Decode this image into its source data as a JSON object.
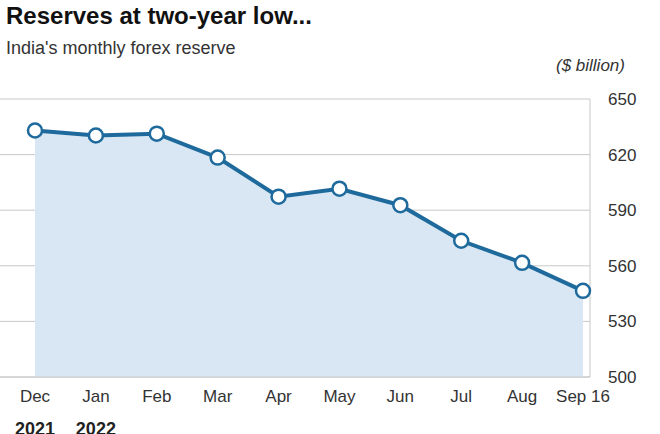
{
  "chart_data": {
    "type": "area",
    "title": "Reserves at two-year low...",
    "subtitle": "India's monthly forex reserve",
    "y_label": "($ billion)",
    "categories": [
      "Dec",
      "Jan",
      "Feb",
      "Mar",
      "Apr",
      "May",
      "Jun",
      "Jul",
      "Aug",
      "Sep 16"
    ],
    "values": [
      633,
      630.3,
      631.3,
      618.4,
      597.3,
      601.6,
      592.7,
      573.5,
      561.6,
      546.5
    ],
    "color": "#1f6a9c",
    "ylim": [
      500,
      650
    ],
    "yticks": [
      500,
      530,
      560,
      590,
      620,
      650
    ],
    "grid": true,
    "marker": "circle",
    "annotations": [
      {
        "text": "2021",
        "category": "Dec"
      },
      {
        "text": "2022",
        "category": "Jan"
      }
    ]
  }
}
